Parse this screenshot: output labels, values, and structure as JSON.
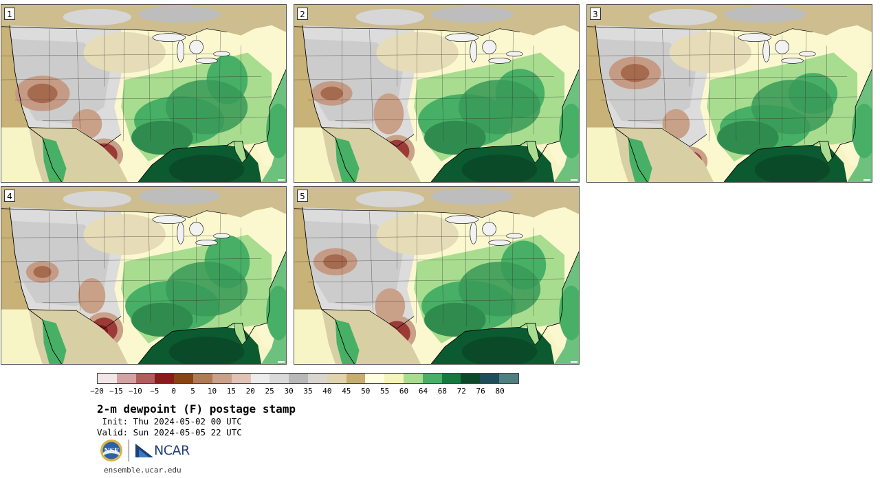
{
  "panels": [
    {
      "label": "1"
    },
    {
      "label": "2"
    },
    {
      "label": "3"
    },
    {
      "label": "4"
    },
    {
      "label": "5"
    }
  ],
  "colorbar": {
    "colors": [
      "#f2e6e6",
      "#d3a3a3",
      "#b35c5c",
      "#8c1a1a",
      "#8a4412",
      "#b07a55",
      "#c9a088",
      "#e0c3b4",
      "#ececec",
      "#d9d9d9",
      "#b8b8b8",
      "#d9d6d0",
      "#e0d3ad",
      "#c8ad70",
      "#ffffe0",
      "#f5f5b8",
      "#a8dd90",
      "#47b066",
      "#157a3e",
      "#0b4a29",
      "#1f4d5c",
      "#4f7f80"
    ],
    "ticks": [
      "−20",
      "−15",
      "−10",
      "−5",
      "0",
      "5",
      "10",
      "15",
      "20",
      "25",
      "30",
      "35",
      "40",
      "45",
      "50",
      "55",
      "60",
      "64",
      "68",
      "72",
      "76",
      "80"
    ]
  },
  "title": "2-m dewpoint (F) postage stamp",
  "init_line": " Init: Thu 2024-05-02 00 UTC",
  "valid_line": "Valid: Sun 2024-05-05 22 UTC",
  "logos": {
    "nsf": "NSF",
    "ncar": "NCAR"
  },
  "site": "ensemble.ucar.edu"
}
